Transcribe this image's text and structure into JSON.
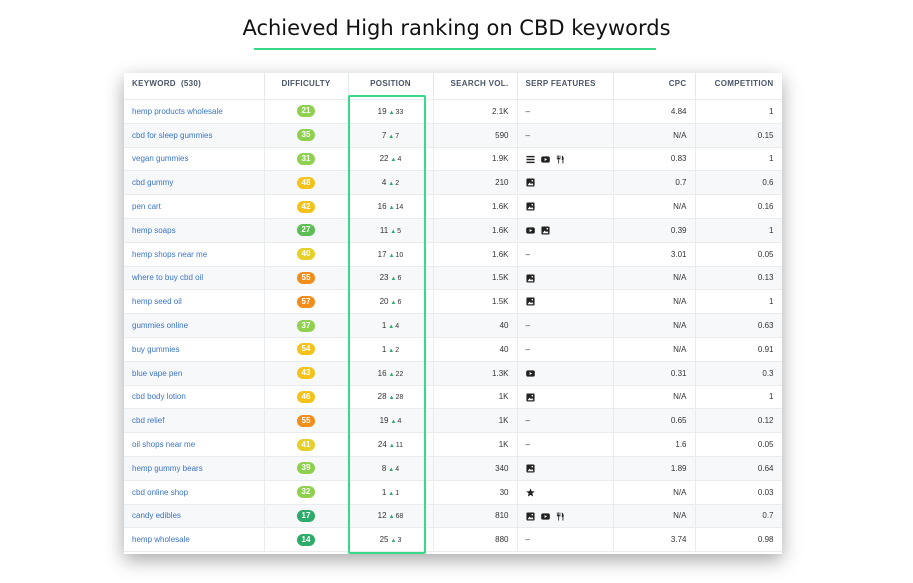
{
  "title": "Achieved High ranking on CBD keywords",
  "colors": {
    "accent": "#39d98a",
    "link": "#3b74c7"
  },
  "columns": {
    "keyword": "KEYWORD",
    "keyword_count": "(530)",
    "difficulty": "DIFFICULTY",
    "position": "POSITION",
    "search_vol": "SEARCH VOL.",
    "serp": "SERP FEATURES",
    "cpc": "CPC",
    "competition": "COMPETITION"
  },
  "rows": [
    {
      "keyword": "hemp products wholesale",
      "difficulty": "21",
      "level": "g1",
      "position": "19",
      "change": "33",
      "volume": "2.1K",
      "serp": "–",
      "serp_icons": [],
      "cpc": "4.84",
      "competition": "1"
    },
    {
      "keyword": "cbd for sleep gummies",
      "difficulty": "35",
      "level": "g1",
      "position": "7",
      "change": "7",
      "volume": "590",
      "serp": "–",
      "serp_icons": [],
      "cpc": "N/A",
      "competition": "0.15"
    },
    {
      "keyword": "vegan gummies",
      "difficulty": "31",
      "level": "g1",
      "position": "22",
      "change": "4",
      "volume": "1.9K",
      "serp": "",
      "serp_icons": [
        "list-icon",
        "video-icon",
        "restaurant-icon"
      ],
      "cpc": "0.83",
      "competition": "1"
    },
    {
      "keyword": "cbd gummy",
      "difficulty": "48",
      "level": "y2",
      "position": "4",
      "change": "2",
      "volume": "210",
      "serp": "",
      "serp_icons": [
        "image-icon"
      ],
      "cpc": "0.7",
      "competition": "0.6"
    },
    {
      "keyword": "pen cart",
      "difficulty": "42",
      "level": "y2",
      "position": "16",
      "change": "14",
      "volume": "1.6K",
      "serp": "",
      "serp_icons": [
        "image-icon"
      ],
      "cpc": "N/A",
      "competition": "0.16"
    },
    {
      "keyword": "hemp soaps",
      "difficulty": "27",
      "level": "g2",
      "position": "11",
      "change": "5",
      "volume": "1.6K",
      "serp": "",
      "serp_icons": [
        "video-icon",
        "image-icon"
      ],
      "cpc": "0.39",
      "competition": "1"
    },
    {
      "keyword": "hemp shops near me",
      "difficulty": "40",
      "level": "y1",
      "position": "17",
      "change": "10",
      "volume": "1.6K",
      "serp": "–",
      "serp_icons": [],
      "cpc": "3.01",
      "competition": "0.05"
    },
    {
      "keyword": "where to buy cbd oil",
      "difficulty": "55",
      "level": "o1",
      "position": "23",
      "change": "6",
      "volume": "1.5K",
      "serp": "",
      "serp_icons": [
        "image-icon"
      ],
      "cpc": "N/A",
      "competition": "0.13"
    },
    {
      "keyword": "hemp seed oil",
      "difficulty": "57",
      "level": "o1",
      "position": "20",
      "change": "6",
      "volume": "1.5K",
      "serp": "",
      "serp_icons": [
        "image-icon"
      ],
      "cpc": "N/A",
      "competition": "1"
    },
    {
      "keyword": "gummies online",
      "difficulty": "37",
      "level": "g1",
      "position": "1",
      "change": "4",
      "volume": "40",
      "serp": "–",
      "serp_icons": [],
      "cpc": "N/A",
      "competition": "0.63"
    },
    {
      "keyword": "buy gummies",
      "difficulty": "54",
      "level": "y2",
      "position": "1",
      "change": "2",
      "volume": "40",
      "serp": "–",
      "serp_icons": [],
      "cpc": "N/A",
      "competition": "0.91"
    },
    {
      "keyword": "blue vape pen",
      "difficulty": "43",
      "level": "y2",
      "position": "16",
      "change": "22",
      "volume": "1.3K",
      "serp": "",
      "serp_icons": [
        "video-icon"
      ],
      "cpc": "0.31",
      "competition": "0.3"
    },
    {
      "keyword": "cbd body lotion",
      "difficulty": "46",
      "level": "y2",
      "position": "28",
      "change": "28",
      "volume": "1K",
      "serp": "",
      "serp_icons": [
        "image-icon"
      ],
      "cpc": "N/A",
      "competition": "1"
    },
    {
      "keyword": "cbd relief",
      "difficulty": "55",
      "level": "o1",
      "position": "19",
      "change": "4",
      "volume": "1K",
      "serp": "–",
      "serp_icons": [],
      "cpc": "0.65",
      "competition": "0.12"
    },
    {
      "keyword": "oil shops near me",
      "difficulty": "41",
      "level": "y1",
      "position": "24",
      "change": "11",
      "volume": "1K",
      "serp": "–",
      "serp_icons": [],
      "cpc": "1.6",
      "competition": "0.05"
    },
    {
      "keyword": "hemp gummy bears",
      "difficulty": "39",
      "level": "g1",
      "position": "8",
      "change": "4",
      "volume": "340",
      "serp": "",
      "serp_icons": [
        "image-icon"
      ],
      "cpc": "1.89",
      "competition": "0.64"
    },
    {
      "keyword": "cbd online shop",
      "difficulty": "32",
      "level": "g1",
      "position": "1",
      "change": "1",
      "volume": "30",
      "serp": "",
      "serp_icons": [
        "star-icon"
      ],
      "cpc": "N/A",
      "competition": "0.03"
    },
    {
      "keyword": "candy edibles",
      "difficulty": "17",
      "level": "g3",
      "position": "12",
      "change": "68",
      "volume": "810",
      "serp": "",
      "serp_icons": [
        "image-icon",
        "video-icon",
        "restaurant-icon"
      ],
      "cpc": "N/A",
      "competition": "0.7"
    },
    {
      "keyword": "hemp wholesale",
      "difficulty": "14",
      "level": "g3",
      "position": "25",
      "change": "3",
      "volume": "880",
      "serp": "–",
      "serp_icons": [],
      "cpc": "3.74",
      "competition": "0.98"
    }
  ]
}
